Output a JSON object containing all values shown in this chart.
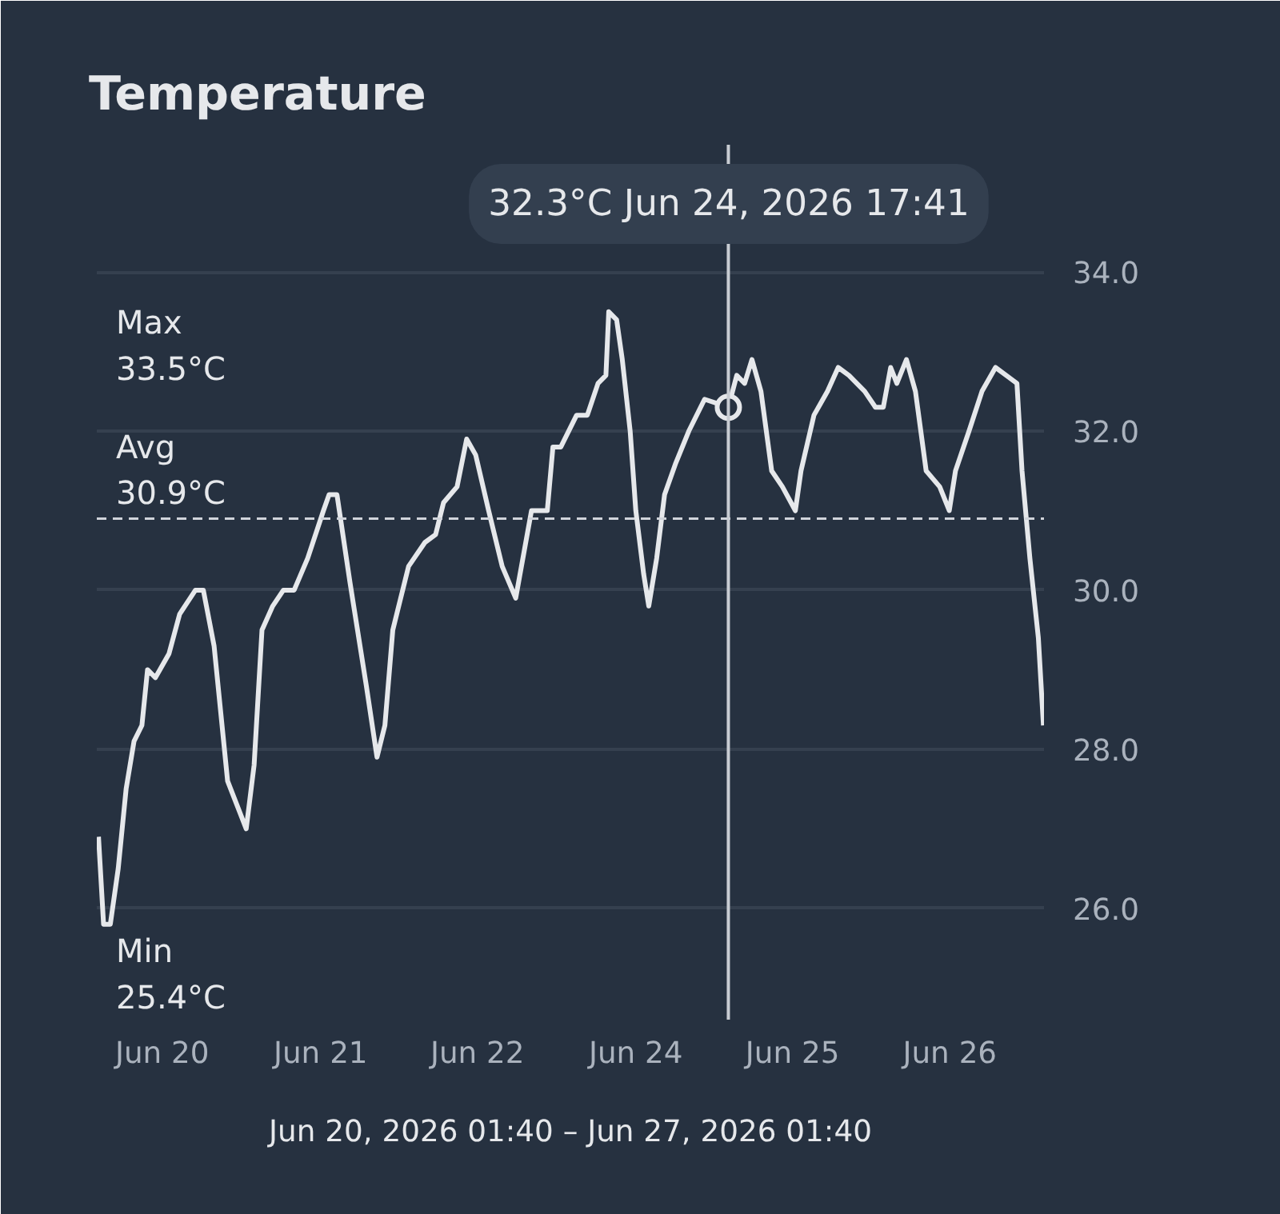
{
  "chart_data": {
    "type": "line",
    "title": "Temperature",
    "xlabel": "Jun 20, 2026 01:40 – Jun 27, 2026 01:40",
    "x": [
      "2026-06-20T01:58",
      "2026-06-20T02:52",
      "2026-06-20T04:04",
      "2026-06-20T05:28",
      "2026-06-20T06:52",
      "2026-06-20T08:16",
      "2026-06-20T09:40",
      "2026-06-20T10:40",
      "2026-06-20T12:04",
      "2026-06-20T14:28",
      "2026-06-20T16:22",
      "2026-06-20T19:10",
      "2026-06-20T20:34",
      "2026-06-20T22:28",
      "2026-06-21T00:52",
      "2026-06-21T04:10",
      "2026-06-21T05:34",
      "2026-06-21T06:58",
      "2026-06-21T08:52",
      "2026-06-21T10:46",
      "2026-06-21T12:40",
      "2026-06-21T15:04",
      "2026-06-21T17:52",
      "2026-06-21T18:52",
      "2026-06-21T20:16",
      "2026-06-21T22:34",
      "2026-06-22T01:28",
      "2026-06-22T03:22",
      "2026-06-22T04:46",
      "2026-06-22T06:10",
      "2026-06-22T08:58",
      "2026-06-22T11:52",
      "2026-06-22T13:46",
      "2026-06-22T15:10",
      "2026-06-22T17:34",
      "2026-06-22T19:16",
      "2026-06-22T20:52",
      "2026-06-22T23:10",
      "2026-06-23T01:34",
      "2026-06-23T03:58",
      "2026-06-23T06:46",
      "2026-06-23T09:34",
      "2026-06-23T10:34",
      "2026-06-23T11:58",
      "2026-06-23T14:46",
      "2026-06-23T16:40",
      "2026-06-23T18:34",
      "2026-06-23T19:58",
      "2026-06-23T20:28",
      "2026-06-23T21:52",
      "2026-06-23T22:52",
      "2026-06-24T00:16",
      "2026-06-24T01:16",
      "2026-06-24T02:40",
      "2026-06-24T03:34",
      "2026-06-24T04:58",
      "2026-06-24T06:22",
      "2026-06-24T08:22",
      "2026-06-24T10:40",
      "2026-06-24T13:28",
      "2026-06-24T17:41",
      "2026-06-24T19:10",
      "2026-06-24T20:34",
      "2026-06-24T21:52",
      "2026-06-24T23:28",
      "2026-06-25T01:22",
      "2026-06-25T03:16",
      "2026-06-25T05:34",
      "2026-06-25T06:34",
      "2026-06-25T08:52",
      "2026-06-25T11:16",
      "2026-06-25T13:10",
      "2026-06-25T15:04",
      "2026-06-25T17:52",
      "2026-06-25T19:46",
      "2026-06-25T21:10",
      "2026-06-25T22:28",
      "2026-06-25T23:34",
      "2026-06-26T01:16",
      "2026-06-26T02:52",
      "2026-06-26T04:46",
      "2026-06-26T07:10",
      "2026-06-26T08:52",
      "2026-06-26T09:58",
      "2026-06-26T12:22",
      "2026-06-26T14:40",
      "2026-06-26T17:04",
      "2026-06-26T18:58",
      "2026-06-26T20:52",
      "2026-06-26T21:46",
      "2026-06-26T23:10",
      "2026-06-27T00:40",
      "2026-06-27T01:34"
    ],
    "series": [
      {
        "color": "#e6e8eb",
        "values": [
          26.9,
          25.8,
          25.8,
          26.5,
          27.5,
          28.1,
          28.3,
          29.0,
          28.9,
          29.2,
          29.7,
          30.0,
          30.0,
          29.3,
          27.6,
          27.0,
          27.8,
          29.5,
          29.8,
          30.0,
          30.0,
          30.4,
          31.0,
          31.2,
          31.2,
          30.1,
          28.8,
          27.9,
          28.3,
          29.5,
          30.3,
          30.6,
          30.7,
          31.1,
          31.3,
          31.9,
          31.7,
          31.0,
          30.3,
          29.9,
          31.0,
          31.0,
          31.8,
          31.8,
          32.2,
          32.2,
          32.6,
          32.7,
          33.5,
          33.4,
          32.9,
          32.0,
          31.0,
          30.2,
          29.8,
          30.4,
          31.2,
          31.6,
          32.0,
          32.4,
          32.3,
          32.7,
          32.6,
          32.9,
          32.5,
          31.5,
          31.3,
          31.0,
          31.5,
          32.2,
          32.5,
          32.8,
          32.7,
          32.5,
          32.3,
          32.3,
          32.8,
          32.6,
          32.9,
          32.5,
          31.5,
          31.3,
          31.0,
          31.5,
          32.0,
          32.5,
          32.8,
          32.7,
          32.6,
          31.5,
          30.4,
          29.4,
          28.3
        ]
      }
    ],
    "xlim": [
      "2026-06-20T01:40",
      "2026-06-27T01:40"
    ],
    "xticks": [
      {
        "value": "2026-06-20T13:16",
        "label": "Jun 20"
      },
      {
        "value": "2026-06-21T17:22",
        "label": "Jun 21"
      },
      {
        "value": "2026-06-22T21:10",
        "label": "Jun 22"
      },
      {
        "value": "2026-06-24T01:16",
        "label": "Jun 24"
      },
      {
        "value": "2026-06-25T05:04",
        "label": "Jun 25"
      },
      {
        "value": "2026-06-26T08:58",
        "label": "Jun 26"
      }
    ],
    "ylim": [
      24.6,
      35.6
    ],
    "yticks": [
      {
        "value": 26,
        "label": "26.0"
      },
      {
        "value": 28,
        "label": "28.0"
      },
      {
        "value": 30,
        "label": "30.0"
      },
      {
        "value": 32,
        "label": "32.0"
      },
      {
        "value": 34,
        "label": "34.0"
      }
    ],
    "grid": "y",
    "marker": "none",
    "line_style": "solid",
    "ref_lines": [
      {
        "axis": "y",
        "value": 30.9,
        "label": "Avg\n30.9°C",
        "line_style": "dashed",
        "color": "#d0d4da"
      },
      {
        "axis": "x",
        "value": "2026-06-24T17:41",
        "label": null,
        "line_style": "solid",
        "color": "#c8ccd2"
      }
    ],
    "annotations": [
      "Max\n33.5°C",
      "Min\n25.4°C",
      "32.3°C Jun 24, 2026 17:41"
    ]
  }
}
